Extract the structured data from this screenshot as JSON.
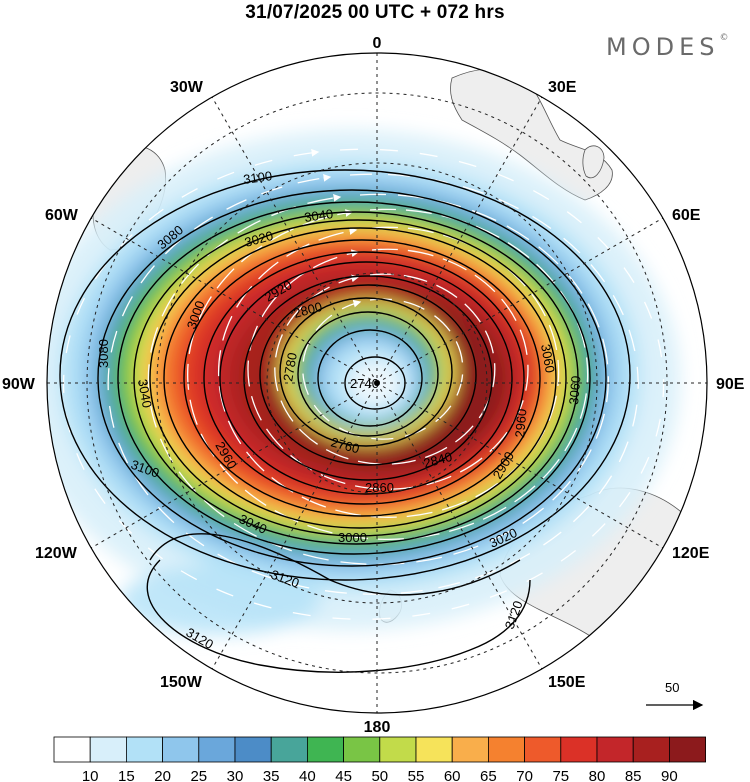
{
  "title": "31/07/2025  00 UTC  + 072 hrs",
  "brand": "MODES",
  "brand_mark": "©",
  "longitude_labels": {
    "n": "0",
    "ne": "30E",
    "ene": "60E",
    "e": "90E",
    "ese": "120E",
    "se": "150E",
    "s": "180",
    "sw": "150W",
    "wsw": "120W",
    "w": "90W",
    "wnw": "60W",
    "nw": "30W"
  },
  "contour_labels": [
    "3100",
    "3080",
    "3040",
    "3020",
    "2920",
    "2800",
    "2780",
    "2740",
    "2760",
    "2840",
    "2860",
    "2900",
    "2960",
    "3060",
    "3080",
    "3000",
    "3040",
    "3100",
    "3120",
    "3120",
    "3120",
    "2960",
    "3040",
    "3060",
    "3000",
    "3020"
  ],
  "wind_scale": {
    "label": "50"
  },
  "colorbar": {
    "levels": [
      "10",
      "15",
      "20",
      "25",
      "30",
      "35",
      "40",
      "45",
      "50",
      "55",
      "60",
      "65",
      "70",
      "75",
      "80",
      "85",
      "90"
    ],
    "colors": [
      "#ffffff",
      "#d8effa",
      "#b2e1f7",
      "#8fc6ec",
      "#6aa7db",
      "#4c8cc7",
      "#48a59a",
      "#3fb552",
      "#79c545",
      "#c2db4a",
      "#f6e35a",
      "#f9ae4b",
      "#f5812f",
      "#ee5a2b",
      "#db3127",
      "#c3262a",
      "#a8201f",
      "#8c1a1c"
    ]
  },
  "colors": {
    "land": "#f0f0f0",
    "grid": "#333333",
    "contour": "#000000",
    "vector": "#ffffff"
  }
}
